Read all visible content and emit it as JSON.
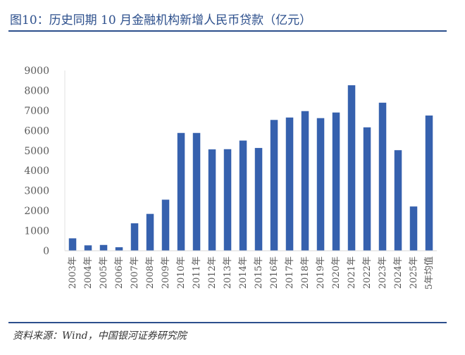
{
  "title": "图10：历史同期 10 月金融机构新增人民币贷款（亿元）",
  "source": "资料来源：Wind，中国银河证券研究院",
  "colors": {
    "bar": "#3661ae",
    "accent": "#2c4f8c"
  },
  "chart_data": {
    "type": "bar",
    "title": "图10：历史同期 10 月金融机构新增人民币贷款（亿元）",
    "xlabel": "",
    "ylabel": "",
    "ylim": [
      0,
      9000
    ],
    "yticks": [
      0,
      1000,
      2000,
      3000,
      4000,
      5000,
      6000,
      7000,
      8000,
      9000
    ],
    "grid": false,
    "legend": "none",
    "categories": [
      "2003年",
      "2004年",
      "2005年",
      "2006年",
      "2007年",
      "2008年",
      "2009年",
      "2010年",
      "2011年",
      "2012年",
      "2013年",
      "2014年",
      "2015年",
      "2016年",
      "2017年",
      "2018年",
      "2019年",
      "2020年",
      "2021年",
      "2022年",
      "2023年",
      "2024年",
      "2025年",
      "5年均值"
    ],
    "values": [
      620,
      270,
      290,
      175,
      1370,
      1840,
      2550,
      5880,
      5880,
      5060,
      5070,
      5500,
      5130,
      6530,
      6650,
      6970,
      6620,
      6900,
      8260,
      6160,
      7390,
      5020,
      2210,
      6750
    ]
  }
}
